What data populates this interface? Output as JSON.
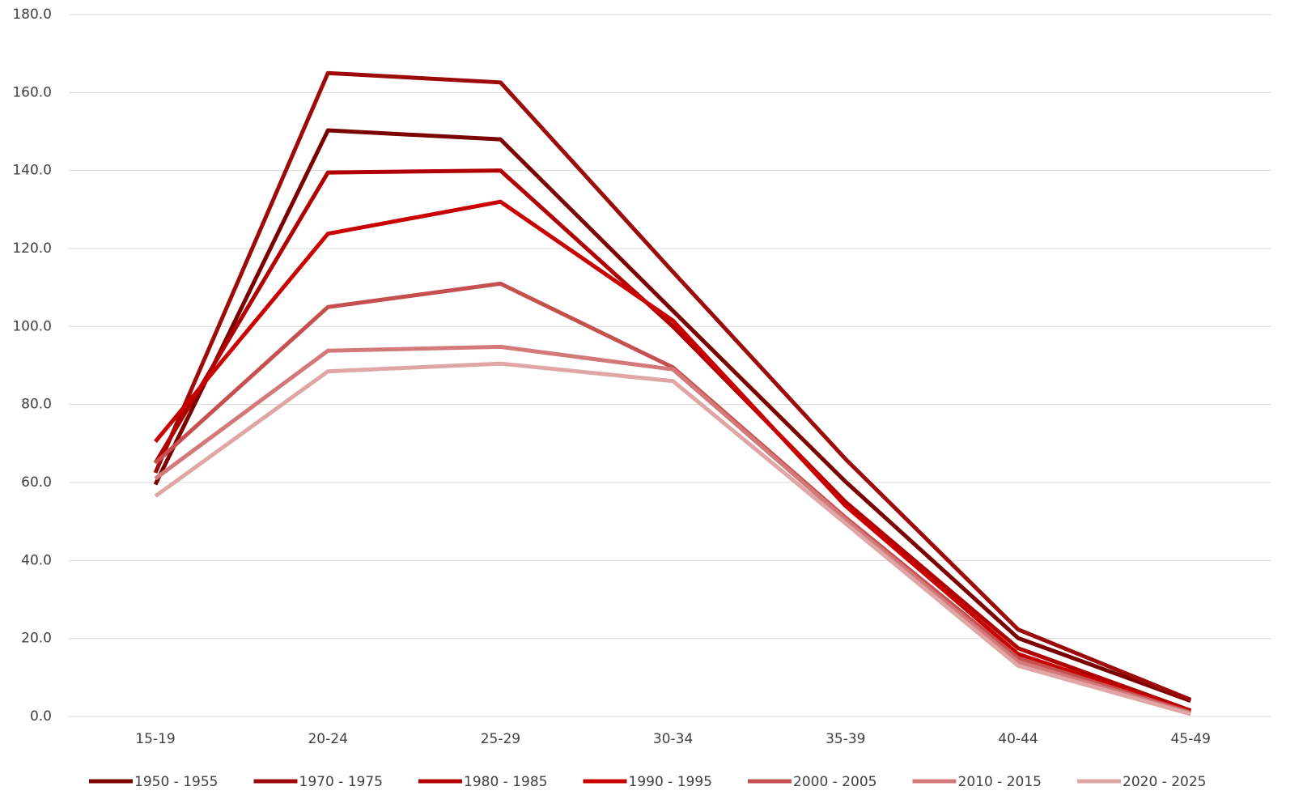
{
  "chart_data": {
    "type": "line",
    "categories": [
      "15-19",
      "20-24",
      "25-29",
      "30-34",
      "35-39",
      "40-44",
      "45-49"
    ],
    "series": [
      {
        "name": "1950 - 1955",
        "color": "#7b0000",
        "values": [
          59.5,
          150.3,
          148.0,
          104.0,
          60.2,
          20.1,
          4.0
        ]
      },
      {
        "name": "1970 - 1975",
        "color": "#9c0a0a",
        "values": [
          62.5,
          165.0,
          162.6,
          114.0,
          66.0,
          22.3,
          4.3
        ]
      },
      {
        "name": "1980 - 1985",
        "color": "#b00000",
        "values": [
          65.0,
          139.5,
          140.0,
          100.0,
          55.0,
          17.5,
          1.5
        ]
      },
      {
        "name": "1990 - 1995",
        "color": "#c80000",
        "values": [
          70.5,
          123.8,
          132.0,
          101.5,
          54.0,
          16.0,
          1.2
        ]
      },
      {
        "name": "2000 - 2005",
        "color": "#c5504f",
        "values": [
          65.0,
          105.0,
          111.0,
          89.5,
          51.0,
          15.0,
          1.0
        ]
      },
      {
        "name": "2010 - 2015",
        "color": "#d4797a",
        "values": [
          61.0,
          93.8,
          94.8,
          89.0,
          50.5,
          14.0,
          0.8
        ]
      },
      {
        "name": "2020 - 2025",
        "color": "#e0a6a6",
        "values": [
          56.5,
          88.5,
          90.5,
          86.0,
          49.5,
          13.0,
          0.6
        ]
      }
    ],
    "ylim": [
      0,
      180
    ],
    "yticks": [
      {
        "value": 0,
        "label": "0.0"
      },
      {
        "value": 20,
        "label": "20.0"
      },
      {
        "value": 40,
        "label": "40.0"
      },
      {
        "value": 60,
        "label": "60.0"
      },
      {
        "value": 80,
        "label": "80.0"
      },
      {
        "value": 100,
        "label": "100.0"
      },
      {
        "value": 120,
        "label": "120.0"
      },
      {
        "value": 140,
        "label": "140.0"
      },
      {
        "value": 160,
        "label": "160.0"
      },
      {
        "value": 180,
        "label": "180.0"
      }
    ],
    "grid": true,
    "legend": "bottom"
  }
}
